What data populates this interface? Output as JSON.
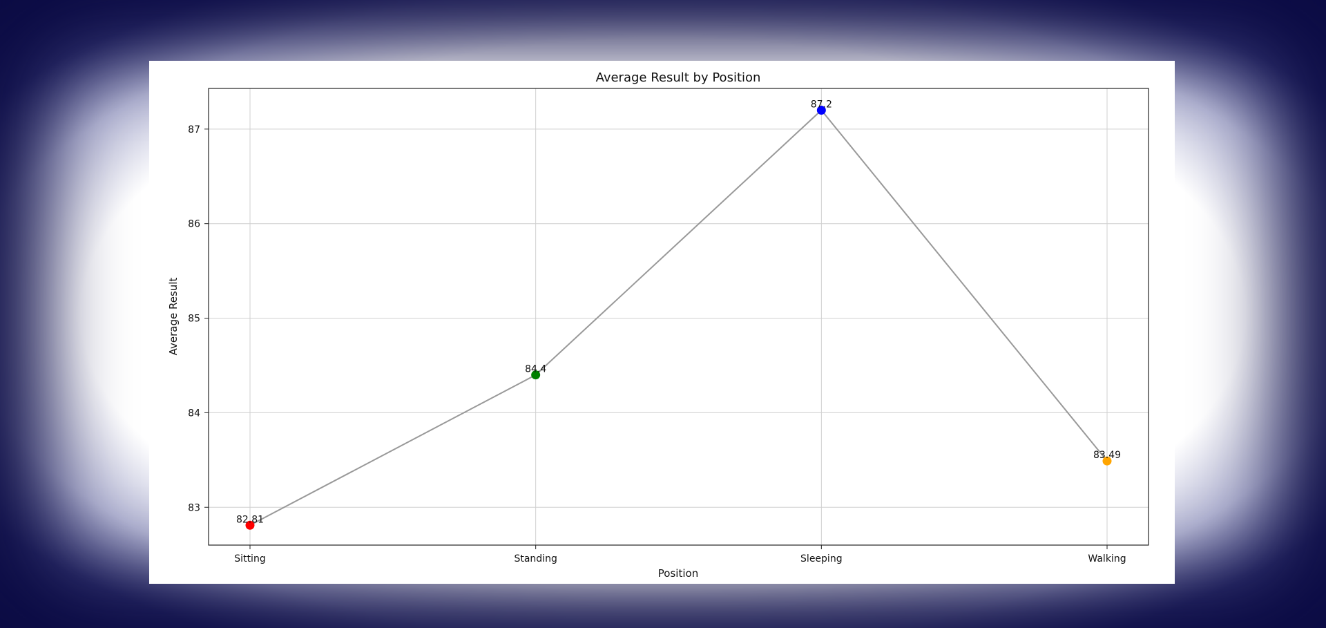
{
  "chart_data": {
    "type": "line",
    "title": "Average Result by Position",
    "xlabel": "Position",
    "ylabel": "Average Result",
    "categories": [
      "Sitting",
      "Standing",
      "Sleeping",
      "Walking"
    ],
    "values": [
      82.81,
      84.4,
      87.2,
      83.49
    ],
    "data_labels": [
      "82.81",
      "84.4",
      "87.2",
      "83.49"
    ],
    "point_colors": [
      "#ff0000",
      "#008000",
      "#0000ff",
      "#ffa500"
    ],
    "line_color": "#999999",
    "ylim": [
      82.6,
      87.43
    ],
    "yticks": [
      83,
      84,
      85,
      86,
      87
    ],
    "ytick_labels": [
      "83",
      "84",
      "85",
      "86",
      "87"
    ],
    "grid": true,
    "legend": "none"
  }
}
